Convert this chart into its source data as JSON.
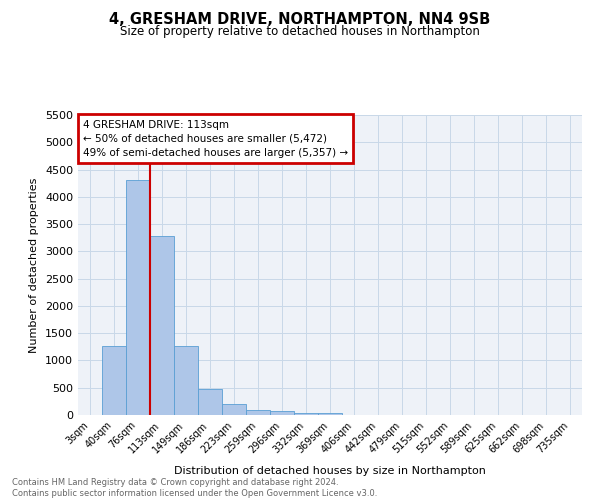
{
  "title": "4, GRESHAM DRIVE, NORTHAMPTON, NN4 9SB",
  "subtitle": "Size of property relative to detached houses in Northampton",
  "xlabel": "Distribution of detached houses by size in Northampton",
  "ylabel": "Number of detached properties",
  "footnote": "Contains HM Land Registry data © Crown copyright and database right 2024.\nContains public sector information licensed under the Open Government Licence v3.0.",
  "bar_labels": [
    "3sqm",
    "40sqm",
    "76sqm",
    "113sqm",
    "149sqm",
    "186sqm",
    "223sqm",
    "259sqm",
    "296sqm",
    "332sqm",
    "369sqm",
    "406sqm",
    "442sqm",
    "479sqm",
    "515sqm",
    "552sqm",
    "589sqm",
    "625sqm",
    "662sqm",
    "698sqm",
    "735sqm"
  ],
  "bar_values": [
    0,
    1260,
    4300,
    3280,
    1270,
    470,
    200,
    90,
    70,
    40,
    30,
    0,
    0,
    0,
    0,
    0,
    0,
    0,
    0,
    0,
    0
  ],
  "bar_color": "#aec6e8",
  "bar_edge_color": "#5a9fd4",
  "property_line_color": "#cc0000",
  "ylim": [
    0,
    5500
  ],
  "yticks": [
    0,
    500,
    1000,
    1500,
    2000,
    2500,
    3000,
    3500,
    4000,
    4500,
    5000,
    5500
  ],
  "annotation_title": "4 GRESHAM DRIVE: 113sqm",
  "annotation_line1": "← 50% of detached houses are smaller (5,472)",
  "annotation_line2": "49% of semi-detached houses are larger (5,357) →",
  "annotation_box_color": "#cc0000",
  "grid_color": "#c8d8e8",
  "background_color": "#eef2f8"
}
